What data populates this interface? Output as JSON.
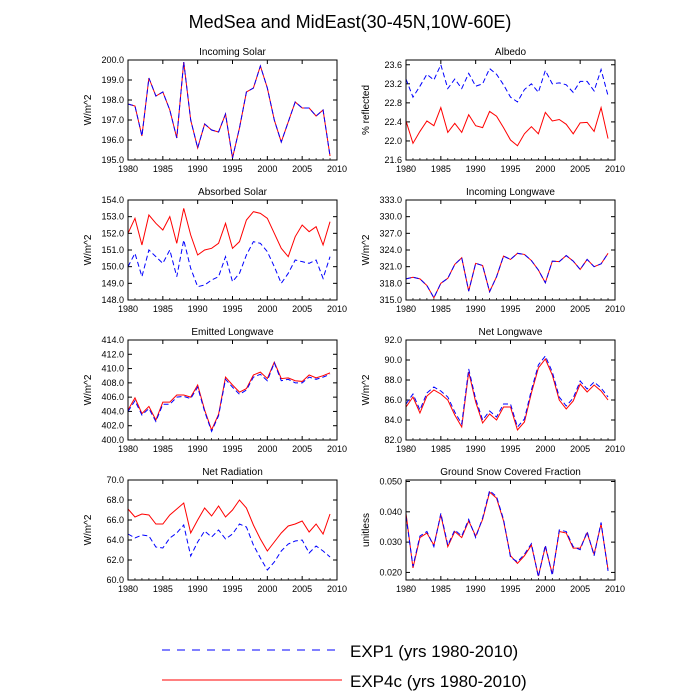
{
  "figure": {
    "title": "MedSea and MidEast(30-45N,10W-60E)",
    "legend": [
      {
        "label": "EXP1 (yrs 1980-2010)",
        "color": "#0000ff",
        "dash": true
      },
      {
        "label": "EXP4c (yrs 1980-2010)",
        "color": "#ff0000",
        "dash": false
      }
    ]
  },
  "chart_data": [
    {
      "type": "line",
      "title": "Incoming Solar",
      "ylabel": "W/m^2",
      "xlim": [
        1980,
        2010
      ],
      "ylim": [
        195.0,
        200.0
      ],
      "xticks": [
        1980,
        1985,
        1990,
        1995,
        2000,
        2005,
        2010
      ],
      "yticks": [
        "195.0",
        "196.0",
        "197.0",
        "198.0",
        "199.0",
        "200.0"
      ],
      "series": [
        {
          "name": "EXP4c",
          "color": "#ff0000",
          "values": [
            197.8,
            197.7,
            196.2,
            199.1,
            198.2,
            198.4,
            197.5,
            196.1,
            199.9,
            197.0,
            195.6,
            196.8,
            196.5,
            196.4,
            197.3,
            195.1,
            196.6,
            198.4,
            198.6,
            199.7,
            198.6,
            197.0,
            195.9,
            196.9,
            197.9,
            197.6,
            197.6,
            197.2,
            197.5,
            195.2
          ]
        },
        {
          "name": "EXP1",
          "color": "#0000ff",
          "values": [
            197.8,
            197.7,
            196.2,
            199.1,
            198.2,
            198.4,
            197.5,
            196.1,
            199.9,
            197.0,
            195.6,
            196.8,
            196.5,
            196.4,
            197.3,
            195.1,
            196.6,
            198.4,
            198.6,
            199.7,
            198.6,
            197.0,
            195.9,
            196.9,
            197.9,
            197.6,
            197.6,
            197.2,
            197.5,
            195.2
          ]
        }
      ]
    },
    {
      "type": "line",
      "title": "Albedo",
      "ylabel": "% reflected",
      "xlim": [
        1980,
        2010
      ],
      "ylim": [
        21.6,
        23.7
      ],
      "xticks": [
        1980,
        1985,
        1990,
        1995,
        2000,
        2005,
        2010
      ],
      "yticks": [
        "21.6",
        "22.0",
        "22.4",
        "22.8",
        "23.2",
        "23.6"
      ],
      "series": [
        {
          "name": "EXP4c",
          "color": "#ff0000",
          "values": [
            22.42,
            21.95,
            22.2,
            22.42,
            22.32,
            22.7,
            22.18,
            22.37,
            22.18,
            22.55,
            22.32,
            22.28,
            22.62,
            22.52,
            22.28,
            22.02,
            21.9,
            22.15,
            22.3,
            22.15,
            22.6,
            22.42,
            22.45,
            22.35,
            22.15,
            22.38,
            22.39,
            22.2,
            22.7,
            22.05
          ]
        },
        {
          "name": "EXP1",
          "color": "#0000ff",
          "values": [
            23.3,
            22.92,
            23.15,
            23.4,
            23.28,
            23.6,
            23.1,
            23.3,
            23.1,
            23.42,
            23.15,
            23.2,
            23.52,
            23.4,
            23.18,
            22.92,
            22.82,
            23.08,
            23.2,
            23.02,
            23.48,
            23.2,
            23.22,
            23.18,
            23.02,
            23.25,
            23.25,
            23.05,
            23.5,
            22.95
          ]
        }
      ]
    },
    {
      "type": "line",
      "title": "Absorbed Solar",
      "ylabel": "W/m^2",
      "xlim": [
        1980,
        2010
      ],
      "ylim": [
        148.0,
        154.0
      ],
      "xticks": [
        1980,
        1985,
        1990,
        1995,
        2000,
        2005,
        2010
      ],
      "yticks": [
        "148.0",
        "149.0",
        "150.0",
        "151.0",
        "152.0",
        "153.0",
        "154.0"
      ],
      "series": [
        {
          "name": "EXP4c",
          "color": "#ff0000",
          "values": [
            152.0,
            152.9,
            151.3,
            153.1,
            152.6,
            152.2,
            153.0,
            151.4,
            153.5,
            151.9,
            150.7,
            151.0,
            151.1,
            151.4,
            152.6,
            151.1,
            151.5,
            152.8,
            153.3,
            153.2,
            152.9,
            152.0,
            151.1,
            150.6,
            151.8,
            152.5,
            152.1,
            152.4,
            151.3,
            152.7
          ]
        },
        {
          "name": "EXP1",
          "color": "#0000ff",
          "values": [
            150.0,
            150.8,
            149.4,
            151.0,
            150.6,
            150.2,
            151.0,
            149.4,
            151.6,
            149.9,
            148.8,
            148.9,
            149.2,
            149.4,
            150.6,
            149.1,
            149.6,
            150.7,
            151.5,
            151.4,
            150.9,
            150.0,
            149.0,
            149.6,
            150.4,
            150.3,
            150.2,
            150.4,
            149.3,
            150.6
          ]
        }
      ]
    },
    {
      "type": "line",
      "title": "Incoming Longwave",
      "ylabel": "W/m^2",
      "xlim": [
        1980,
        2010
      ],
      "ylim": [
        315.0,
        333.0
      ],
      "xticks": [
        1980,
        1985,
        1990,
        1995,
        2000,
        2005,
        2010
      ],
      "yticks": [
        "315.0",
        "318.0",
        "321.0",
        "324.0",
        "327.0",
        "330.0",
        "333.0"
      ],
      "series": [
        {
          "name": "EXP4c",
          "color": "#ff0000",
          "values": [
            318.8,
            319.1,
            318.8,
            317.6,
            315.4,
            318.0,
            318.9,
            321.4,
            322.6,
            316.6,
            321.6,
            321.2,
            316.5,
            319.2,
            322.9,
            322.3,
            323.4,
            323.2,
            322.1,
            320.4,
            318.1,
            322.0,
            321.9,
            323.0,
            322.0,
            320.5,
            322.3,
            321.0,
            321.5,
            323.4
          ]
        },
        {
          "name": "EXP1",
          "color": "#0000ff",
          "values": [
            318.8,
            319.1,
            318.8,
            317.6,
            315.4,
            318.0,
            318.9,
            321.4,
            322.6,
            316.6,
            321.6,
            321.2,
            316.5,
            319.2,
            322.9,
            322.3,
            323.4,
            323.2,
            322.1,
            320.4,
            318.1,
            322.0,
            321.9,
            323.0,
            322.0,
            320.5,
            322.3,
            321.0,
            321.5,
            323.4
          ]
        }
      ]
    },
    {
      "type": "line",
      "title": "Emitted Longwave",
      "ylabel": "W/m^2",
      "xlim": [
        1980,
        2010
      ],
      "ylim": [
        400.0,
        414.0
      ],
      "xticks": [
        1980,
        1985,
        1990,
        1995,
        2000,
        2005,
        2010
      ],
      "yticks": [
        "400.0",
        "402.0",
        "404.0",
        "406.0",
        "408.0",
        "410.0",
        "412.0",
        "414.0"
      ],
      "series": [
        {
          "name": "EXP4c",
          "color": "#ff0000",
          "values": [
            404.2,
            405.9,
            403.7,
            404.7,
            402.8,
            405.3,
            405.3,
            406.3,
            406.3,
            406.0,
            407.7,
            404.2,
            401.4,
            403.6,
            408.8,
            407.7,
            406.7,
            407.2,
            409.1,
            409.5,
            408.6,
            410.9,
            408.6,
            408.7,
            408.3,
            408.2,
            409.1,
            408.7,
            409.0,
            409.4
          ]
        },
        {
          "name": "EXP1",
          "color": "#0000ff",
          "values": [
            404.0,
            405.5,
            403.5,
            404.4,
            402.6,
            405.0,
            405.0,
            406.0,
            406.1,
            405.8,
            407.4,
            404.0,
            401.2,
            403.4,
            408.5,
            407.4,
            406.4,
            407.0,
            408.8,
            409.2,
            408.3,
            410.8,
            408.3,
            408.5,
            408.0,
            408.0,
            408.8,
            408.5,
            408.8,
            409.2
          ]
        }
      ]
    },
    {
      "type": "line",
      "title": "Net Longwave",
      "ylabel": "W/m^2",
      "xlim": [
        1980,
        2010
      ],
      "ylim": [
        82.0,
        92.0
      ],
      "xticks": [
        1980,
        1985,
        1990,
        1995,
        2000,
        2005,
        2010
      ],
      "yticks": [
        "82.0",
        "84.0",
        "86.0",
        "88.0",
        "90.0",
        "92.0"
      ],
      "series": [
        {
          "name": "EXP4c",
          "color": "#ff0000",
          "values": [
            85.3,
            86.3,
            84.7,
            86.4,
            87.0,
            86.6,
            86.0,
            84.5,
            83.3,
            88.8,
            85.8,
            83.7,
            84.6,
            84.0,
            85.3,
            85.3,
            83.0,
            83.8,
            86.7,
            89.2,
            90.1,
            88.5,
            86.0,
            85.1,
            85.9,
            87.6,
            86.8,
            87.5,
            86.9,
            86.0
          ]
        },
        {
          "name": "EXP1",
          "color": "#0000ff",
          "values": [
            85.6,
            86.6,
            85.0,
            86.7,
            87.3,
            86.9,
            86.3,
            84.8,
            83.6,
            89.1,
            86.1,
            84.0,
            84.9,
            84.3,
            85.6,
            85.6,
            83.3,
            84.1,
            87.0,
            89.5,
            90.4,
            88.8,
            86.3,
            85.4,
            86.2,
            87.9,
            87.1,
            87.8,
            87.2,
            86.3
          ]
        }
      ]
    },
    {
      "type": "line",
      "title": "Net Radiation",
      "ylabel": "W/m^2",
      "xlim": [
        1980,
        2010
      ],
      "ylim": [
        60.0,
        70.0
      ],
      "xticks": [
        1980,
        1985,
        1990,
        1995,
        2000,
        2005,
        2010
      ],
      "yticks": [
        "60.0",
        "62.0",
        "64.0",
        "66.0",
        "68.0",
        "70.0"
      ],
      "series": [
        {
          "name": "EXP4c",
          "color": "#ff0000",
          "values": [
            67.1,
            66.3,
            66.6,
            66.5,
            65.6,
            65.6,
            66.5,
            67.1,
            67.7,
            64.7,
            66.0,
            67.2,
            66.4,
            67.4,
            66.3,
            67.0,
            68.0,
            67.2,
            65.5,
            64.1,
            62.9,
            63.8,
            64.7,
            65.4,
            65.6,
            65.9,
            64.8,
            65.6,
            64.6,
            66.6
          ]
        },
        {
          "name": "EXP1",
          "color": "#0000ff",
          "values": [
            64.6,
            64.2,
            64.5,
            64.4,
            63.3,
            63.2,
            64.2,
            64.7,
            65.5,
            62.4,
            63.8,
            64.9,
            64.3,
            65.0,
            64.1,
            64.6,
            65.6,
            65.3,
            63.5,
            62.2,
            61.0,
            61.8,
            62.9,
            63.6,
            63.9,
            64.0,
            62.7,
            63.4,
            62.9,
            62.3
          ]
        }
      ]
    },
    {
      "type": "line",
      "title": "Ground Snow Covered Fraction",
      "ylabel": "unitless",
      "xlim": [
        1980,
        2010
      ],
      "ylim": [
        0.0175,
        0.0505
      ],
      "xticks": [
        1980,
        1985,
        1990,
        1995,
        2000,
        2005,
        2010
      ],
      "yticks": [
        "0.020",
        "0.030",
        "0.040",
        "0.050"
      ],
      "series": [
        {
          "name": "EXP4c",
          "color": "#ff0000",
          "values": [
            0.0395,
            0.0215,
            0.0315,
            0.033,
            0.029,
            0.039,
            0.0285,
            0.0335,
            0.0315,
            0.037,
            0.032,
            0.0375,
            0.0465,
            0.0445,
            0.037,
            0.0255,
            0.023,
            0.0255,
            0.029,
            0.0188,
            0.0285,
            0.0195,
            0.0335,
            0.033,
            0.028,
            0.028,
            0.033,
            0.026,
            0.036,
            0.021
          ]
        },
        {
          "name": "EXP1",
          "color": "#0000ff",
          "values": [
            0.0385,
            0.022,
            0.032,
            0.0335,
            0.0285,
            0.0395,
            0.029,
            0.034,
            0.032,
            0.0375,
            0.0315,
            0.038,
            0.047,
            0.045,
            0.0375,
            0.025,
            0.0235,
            0.026,
            0.0295,
            0.0185,
            0.029,
            0.019,
            0.034,
            0.0335,
            0.0285,
            0.0275,
            0.0335,
            0.0255,
            0.0365,
            0.0205
          ]
        }
      ]
    }
  ]
}
